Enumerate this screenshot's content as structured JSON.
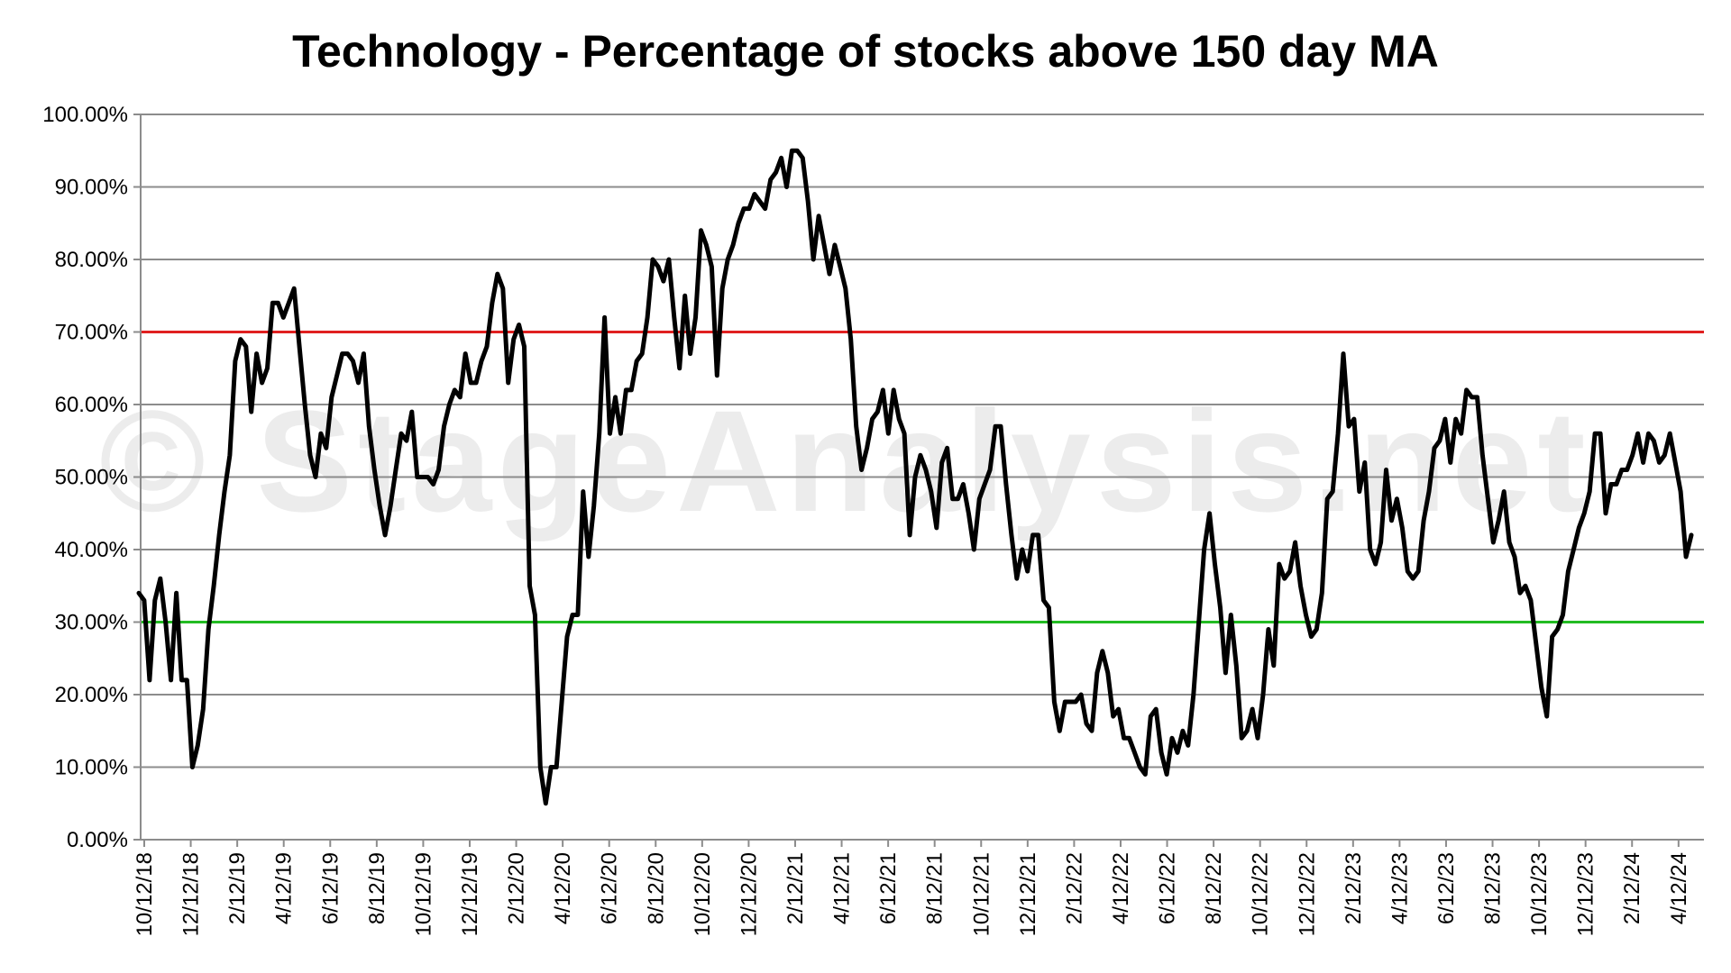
{
  "chart_data": {
    "type": "line",
    "title": "Technology - Percentage of stocks above 150 day MA",
    "watermark": "© StageAnalysis.net",
    "xlabel": "",
    "ylabel": "",
    "ylim": [
      0,
      100
    ],
    "yticks": [
      "0.00%",
      "10.00%",
      "20.00%",
      "30.00%",
      "40.00%",
      "50.00%",
      "60.00%",
      "70.00%",
      "80.00%",
      "90.00%",
      "100.00%"
    ],
    "xticks": [
      "10/12/18",
      "12/12/18",
      "2/12/19",
      "4/12/19",
      "6/12/19",
      "8/12/19",
      "10/12/19",
      "12/12/19",
      "2/12/20",
      "4/12/20",
      "6/12/20",
      "8/12/20",
      "10/12/20",
      "12/12/20",
      "2/12/21",
      "4/12/21",
      "6/12/21",
      "8/12/21",
      "10/12/21",
      "12/12/21",
      "2/12/22",
      "4/12/22",
      "6/12/22",
      "8/12/22",
      "10/12/22",
      "12/12/22",
      "2/12/23",
      "4/12/23",
      "6/12/23",
      "8/12/23",
      "10/12/23",
      "12/12/23",
      "2/12/24",
      "4/12/24"
    ],
    "grid": true,
    "reference_lines": [
      {
        "value": 70,
        "color": "#e02020"
      },
      {
        "value": 30,
        "color": "#22bb22"
      }
    ],
    "series_color": "#000000",
    "series": [
      {
        "values": [
          34,
          33,
          22,
          33,
          36,
          30,
          22,
          34,
          22,
          22,
          10,
          13,
          18,
          29,
          35,
          42,
          48,
          53,
          66,
          69,
          68,
          59,
          67,
          63,
          65,
          74,
          74,
          72,
          74,
          76,
          68,
          60,
          53,
          50,
          56,
          54,
          61,
          64,
          67,
          67,
          66,
          63,
          67,
          57,
          51,
          46,
          42,
          46,
          51,
          56,
          55,
          59,
          50,
          50,
          50,
          49,
          51,
          57,
          60,
          62,
          61,
          67,
          63,
          63,
          66,
          68,
          74,
          78,
          76,
          63,
          69,
          71,
          68,
          35,
          31,
          10,
          5,
          10,
          10,
          19,
          28,
          31,
          31,
          48,
          39,
          46,
          56,
          72,
          56,
          61,
          56,
          62,
          62,
          66,
          67,
          72,
          80,
          79,
          77,
          80,
          72,
          65,
          75,
          67,
          72,
          84,
          82,
          79,
          64,
          76,
          80,
          82,
          85,
          87,
          87,
          89,
          88,
          87,
          91,
          92,
          94,
          90,
          95,
          95,
          94,
          88,
          80,
          86,
          82,
          78,
          82,
          79,
          76,
          69,
          57,
          51,
          54,
          58,
          59,
          62,
          56,
          62,
          58,
          56,
          42,
          50,
          53,
          51,
          48,
          43,
          52,
          54,
          47,
          47,
          49,
          45,
          40,
          47,
          49,
          51,
          57,
          57,
          49,
          42,
          36,
          40,
          37,
          42,
          42,
          33,
          32,
          19,
          15,
          19,
          19,
          19,
          20,
          16,
          15,
          23,
          26,
          23,
          17,
          18,
          14,
          14,
          12,
          10,
          9,
          17,
          18,
          12,
          9,
          14,
          12,
          15,
          13,
          20,
          30,
          40,
          45,
          38,
          32,
          23,
          31,
          24,
          14,
          15,
          18,
          14,
          20,
          29,
          24,
          38,
          36,
          37,
          41,
          35,
          31,
          28,
          29,
          34,
          47,
          48,
          56,
          67,
          57,
          58,
          48,
          52,
          40,
          38,
          41,
          51,
          44,
          47,
          43,
          37,
          36,
          37,
          44,
          48,
          54,
          55,
          58,
          52,
          58,
          56,
          62,
          61,
          61,
          53,
          47,
          41,
          44,
          48,
          41,
          39,
          34,
          35,
          33,
          27,
          21,
          17,
          28,
          29,
          31,
          37,
          40,
          43,
          45,
          48,
          56,
          56,
          45,
          49,
          49,
          51,
          51,
          53,
          56,
          52,
          56,
          55,
          52,
          53,
          56,
          52,
          48,
          39,
          42
        ]
      }
    ]
  }
}
